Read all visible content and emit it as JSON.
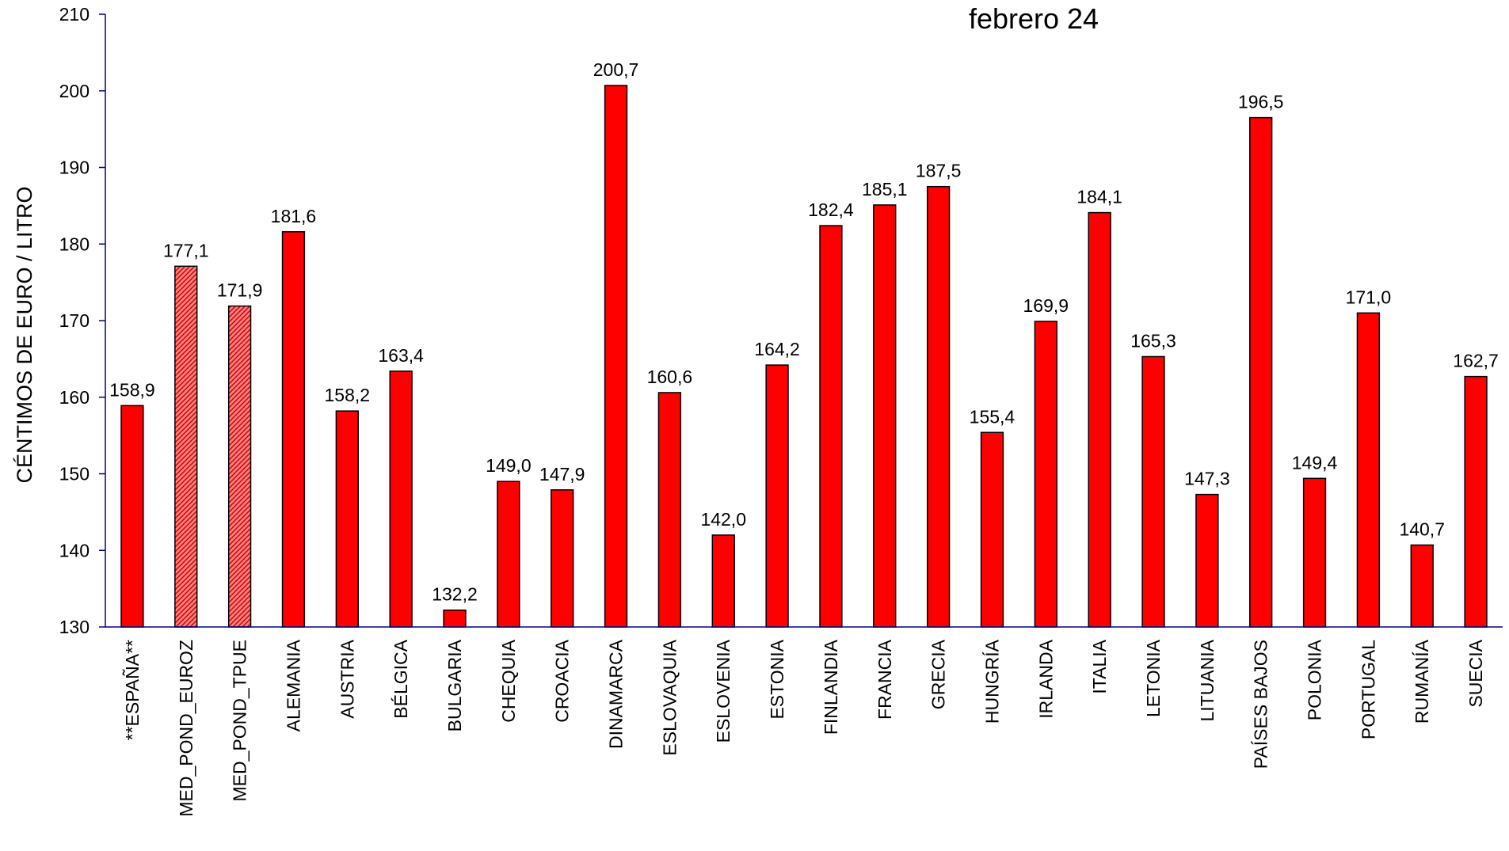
{
  "chart_data": {
    "type": "bar",
    "title": "febrero 24",
    "ylabel": "CÉNTIMOS DE EURO / LITRO",
    "xlabel": "",
    "ylim": [
      130,
      210
    ],
    "yticks": [
      130,
      140,
      150,
      160,
      170,
      180,
      190,
      200,
      210
    ],
    "grid": false,
    "legend": "none",
    "categories": [
      "**ESPAÑA**",
      "MED_POND_EUROZ",
      "MED_POND_TPUE",
      "ALEMANIA",
      "AUSTRIA",
      "BÉLGICA",
      "BULGARIA",
      "CHEQUIA",
      "CROACIA",
      "DINAMARCA",
      "ESLOVAQUIA",
      "ESLOVENIA",
      "ESTONIA",
      "FINLANDIA",
      "FRANCIA",
      "GRECIA",
      "HUNGRÍA",
      "IRLANDA",
      "ITALIA",
      "LETONIA",
      "LITUANIA",
      "PAÍSES BAJOS",
      "POLONIA",
      "PORTUGAL",
      "RUMANÍA",
      "SUECIA"
    ],
    "values": [
      158.9,
      177.1,
      171.9,
      181.6,
      158.2,
      163.4,
      132.2,
      149.0,
      147.9,
      200.7,
      160.6,
      142.0,
      164.2,
      182.4,
      185.1,
      187.5,
      155.4,
      169.9,
      184.1,
      165.3,
      147.3,
      196.5,
      149.4,
      171.0,
      140.7,
      162.7
    ],
    "value_labels": [
      "158,9",
      "177,1",
      "171,9",
      "181,6",
      "158,2",
      "163,4",
      "132,2",
      "149,0",
      "147,9",
      "200,7",
      "160,6",
      "142,0",
      "164,2",
      "182,4",
      "185,1",
      "187,5",
      "155,4",
      "169,9",
      "184,1",
      "165,3",
      "147,3",
      "196,5",
      "149,4",
      "171,0",
      "140,7",
      "162,7"
    ],
    "hatched": [
      false,
      true,
      true,
      false,
      false,
      false,
      false,
      false,
      false,
      false,
      false,
      false,
      false,
      false,
      false,
      false,
      false,
      false,
      false,
      false,
      false,
      false,
      false,
      false,
      false,
      false
    ],
    "colors": {
      "bar_fill": "#ff0000",
      "bar_stroke": "#000000",
      "hatch_fill": "#ff8080",
      "hatch_line": "#cc0000",
      "axis": "#000080"
    }
  }
}
